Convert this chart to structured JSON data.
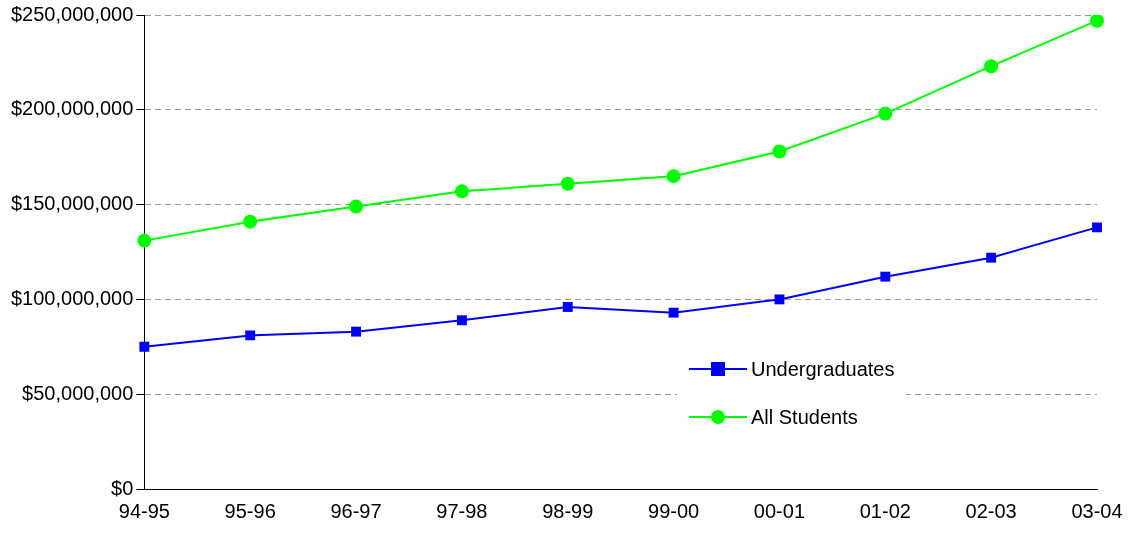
{
  "chart_data": {
    "type": "line",
    "categories": [
      "94-95",
      "95-96",
      "96-97",
      "97-98",
      "98-99",
      "99-00",
      "00-01",
      "01-02",
      "02-03",
      "03-04"
    ],
    "series": [
      {
        "name": "Undergraduates",
        "color": "#0000ff",
        "marker": "square",
        "values": [
          75000000,
          81000000,
          83000000,
          89000000,
          96000000,
          93000000,
          100000000,
          112000000,
          122000000,
          138000000
        ]
      },
      {
        "name": "All Students",
        "color": "#00ff00",
        "marker": "circle",
        "values": [
          131000000,
          141000000,
          149000000,
          157000000,
          161000000,
          165000000,
          178000000,
          198000000,
          223000000,
          247000000
        ]
      }
    ],
    "ylim": [
      0,
      250000000
    ],
    "yticks": [
      {
        "value": 0,
        "label": "$0"
      },
      {
        "value": 50000000,
        "label": "$50,000,000"
      },
      {
        "value": 100000000,
        "label": "$100,000,000"
      },
      {
        "value": 150000000,
        "label": "$150,000,000"
      },
      {
        "value": 200000000,
        "label": "$200,000,000"
      },
      {
        "value": 250000000,
        "label": "$250,000,000"
      }
    ],
    "grid": "y",
    "legend": "bottom right"
  }
}
